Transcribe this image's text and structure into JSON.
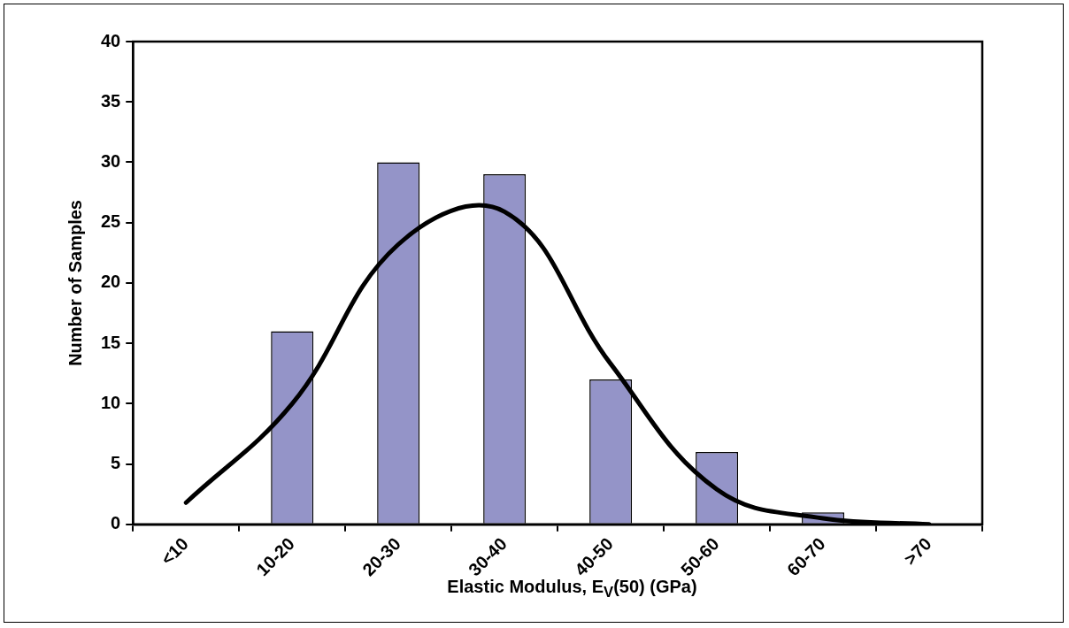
{
  "chart_data": {
    "type": "bar",
    "xlabel": "Elastic Modulus, E$_{V}$(50) (GPa)",
    "ylabel": "Number of Samples",
    "categories": [
      "<10",
      "10-20",
      "20-30",
      "30-40",
      "40-50",
      "50-60",
      "60-70",
      ">70"
    ],
    "series": [
      {
        "color": "#9494c8",
        "values": [
          0,
          16,
          30,
          29,
          12,
          6,
          1,
          0
        ]
      },
      {
        "type": "line",
        "color": "#000000",
        "values": [
          1.8,
          10,
          23.2,
          25.9,
          13.3,
          2.9,
          0.5,
          0
        ]
      }
    ],
    "ylim": [
      0,
      40
    ],
    "yticks": [
      0,
      5,
      10,
      15,
      20,
      25,
      30,
      35,
      40
    ],
    "grid": false,
    "legend": false
  }
}
